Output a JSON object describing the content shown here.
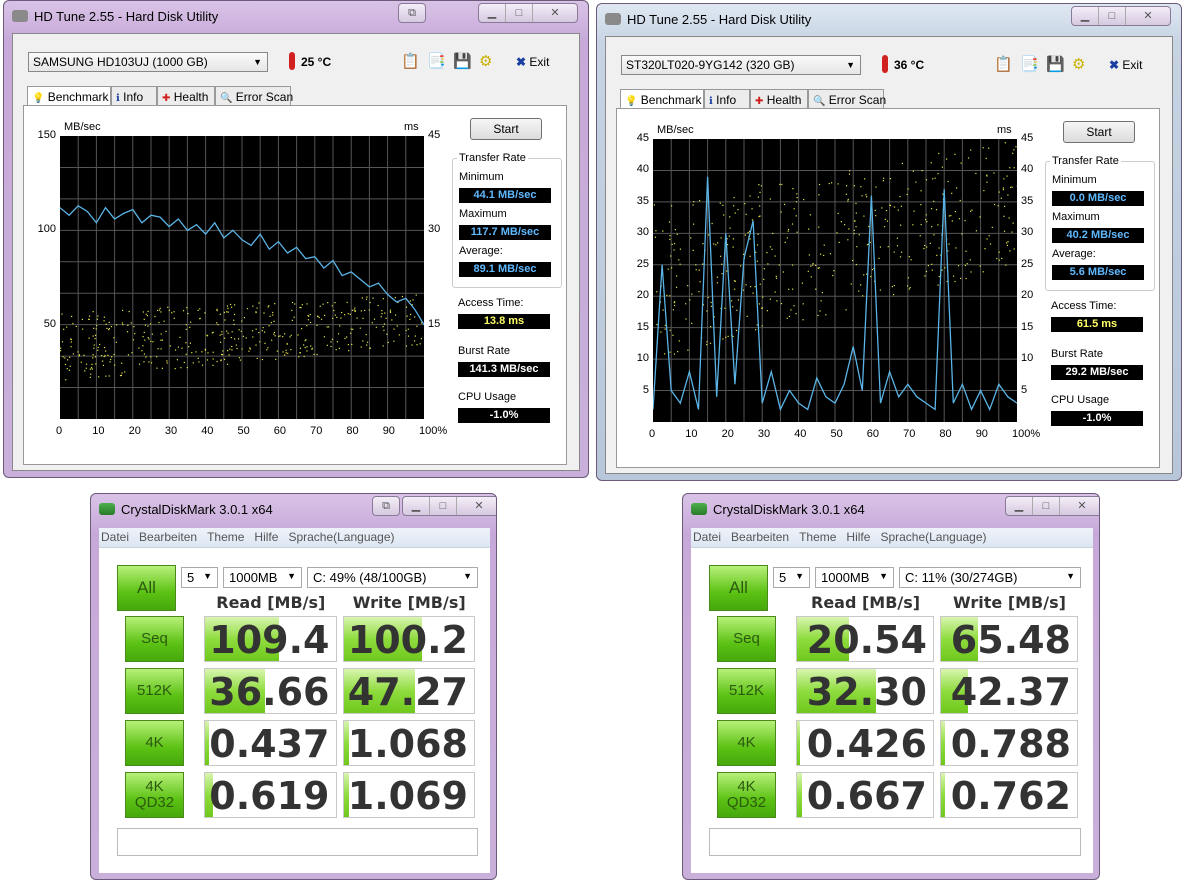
{
  "hdtune": [
    {
      "title": "HD Tune 2.55 - Hard Disk Utility",
      "drive": "SAMSUNG HD103UJ (1000 GB)",
      "temperature": "25 °C",
      "exit_label": "Exit",
      "tabs": [
        "Benchmark",
        "Info",
        "Health",
        "Error Scan"
      ],
      "start_label": "Start",
      "transfer_rate_label": "Transfer Rate",
      "minimum_label": "Minimum",
      "minimum": "44.1 MB/sec",
      "maximum_label": "Maximum",
      "maximum": "117.7 MB/sec",
      "average_label": "Average:",
      "average": "89.1 MB/sec",
      "access_time_label": "Access Time:",
      "access_time": "13.8 ms",
      "burst_rate_label": "Burst Rate",
      "burst_rate": "141.3 MB/sec",
      "cpu_usage_label": "CPU Usage",
      "cpu_usage": "-1.0%",
      "chart_data": {
        "type": "line",
        "ylabel_left": "MB/sec",
        "ylabel_right": "ms",
        "ylim_left": [
          0,
          150
        ],
        "ylim_right": [
          0,
          45
        ],
        "yticks_left": [
          "150",
          "100",
          "50"
        ],
        "yticks_right": [
          "45",
          "30",
          "15"
        ],
        "xticks": [
          "0",
          "10",
          "20",
          "30",
          "40",
          "50",
          "60",
          "70",
          "80",
          "90",
          "100%"
        ],
        "line_color": "#5ab4e6",
        "scatter_color": "#e6e64a",
        "x_step_percent": 2.5,
        "transfer_rate_mb_s": [
          112,
          108,
          113,
          110,
          104,
          112,
          106,
          109,
          111,
          104,
          108,
          107,
          102,
          106,
          100,
          103,
          98,
          104,
          96,
          100,
          95,
          92,
          98,
          90,
          94,
          88,
          91,
          85,
          86,
          80,
          84,
          76,
          78,
          74,
          70,
          72,
          66,
          62,
          64,
          58,
          50
        ],
        "access_time_ms_band": {
          "start": [
            6,
            17
          ],
          "end": [
            12,
            20
          ]
        }
      }
    },
    {
      "title": "HD Tune 2.55 - Hard Disk Utility",
      "drive": "ST320LT020-9YG142 (320 GB)",
      "temperature": "36 °C",
      "exit_label": "Exit",
      "tabs": [
        "Benchmark",
        "Info",
        "Health",
        "Error Scan"
      ],
      "start_label": "Start",
      "transfer_rate_label": "Transfer Rate",
      "minimum_label": "Minimum",
      "minimum": "0.0 MB/sec",
      "maximum_label": "Maximum",
      "maximum": "40.2 MB/sec",
      "average_label": "Average:",
      "average": "5.6 MB/sec",
      "access_time_label": "Access Time:",
      "access_time": "61.5 ms",
      "burst_rate_label": "Burst Rate",
      "burst_rate": "29.2 MB/sec",
      "cpu_usage_label": "CPU Usage",
      "cpu_usage": "-1.0%",
      "chart_data": {
        "type": "line",
        "ylabel_left": "MB/sec",
        "ylabel_right": "ms",
        "ylim_left": [
          0,
          45
        ],
        "ylim_right": [
          0,
          45
        ],
        "yticks_left": [
          "45",
          "40",
          "35",
          "30",
          "25",
          "20",
          "15",
          "10",
          "5"
        ],
        "yticks_right": [
          "45",
          "40",
          "35",
          "30",
          "25",
          "20",
          "15",
          "10",
          "5"
        ],
        "xticks": [
          "0",
          "10",
          "20",
          "30",
          "40",
          "50",
          "60",
          "70",
          "80",
          "90",
          "100%"
        ],
        "line_color": "#5ab4e6",
        "scatter_color": "#e6e64a",
        "x_step_percent": 2.5,
        "transfer_rate_mb_s": [
          2,
          25,
          5,
          3,
          8,
          2,
          39,
          4,
          30,
          6,
          26,
          32,
          3,
          8,
          2,
          5,
          3,
          2,
          7,
          4,
          3,
          6,
          12,
          5,
          36,
          3,
          8,
          4,
          6,
          4,
          3,
          2,
          37,
          3,
          6,
          2,
          5,
          2,
          6,
          4,
          3
        ],
        "access_time_ms_band": {
          "start": [
            10,
            35
          ],
          "end": [
            25,
            45
          ]
        }
      }
    }
  ],
  "cdm": [
    {
      "title": "CrystalDiskMark 3.0.1 x64",
      "menu": [
        "Datei",
        "Bearbeiten",
        "Theme",
        "Hilfe",
        "Sprache(Language)"
      ],
      "all_label": "All",
      "runs": "5",
      "size": "1000MB",
      "drive": "C: 49% (48/100GB)",
      "read_header": "Read [MB/s]",
      "write_header": "Write [MB/s]",
      "rows": [
        {
          "label": "Seq",
          "read": "109.4",
          "write": "100.2",
          "read_fill": 0.57,
          "write_fill": 0.6
        },
        {
          "label": "512K",
          "read": "36.66",
          "write": "47.27",
          "read_fill": 0.46,
          "write_fill": 0.55
        },
        {
          "label": "4K",
          "read": "0.437",
          "write": "1.068",
          "read_fill": 0.03,
          "write_fill": 0.04
        },
        {
          "label": "4K\nQD32",
          "read": "0.619",
          "write": "1.069",
          "read_fill": 0.06,
          "write_fill": 0.04
        }
      ],
      "status": ""
    },
    {
      "title": "CrystalDiskMark 3.0.1 x64",
      "menu": [
        "Datei",
        "Bearbeiten",
        "Theme",
        "Hilfe",
        "Sprache(Language)"
      ],
      "all_label": "All",
      "runs": "5",
      "size": "1000MB",
      "drive": "C: 11% (30/274GB)",
      "read_header": "Read [MB/s]",
      "write_header": "Write [MB/s]",
      "rows": [
        {
          "label": "Seq",
          "read": "20.54",
          "write": "65.48",
          "read_fill": 0.38,
          "write_fill": 0.27
        },
        {
          "label": "512K",
          "read": "32.30",
          "write": "42.37",
          "read_fill": 0.58,
          "write_fill": 0.2
        },
        {
          "label": "4K",
          "read": "0.426",
          "write": "0.788",
          "read_fill": 0.02,
          "write_fill": 0.03
        },
        {
          "label": "4K\nQD32",
          "read": "0.667",
          "write": "0.762",
          "read_fill": 0.04,
          "write_fill": 0.03
        }
      ],
      "status": ""
    }
  ]
}
